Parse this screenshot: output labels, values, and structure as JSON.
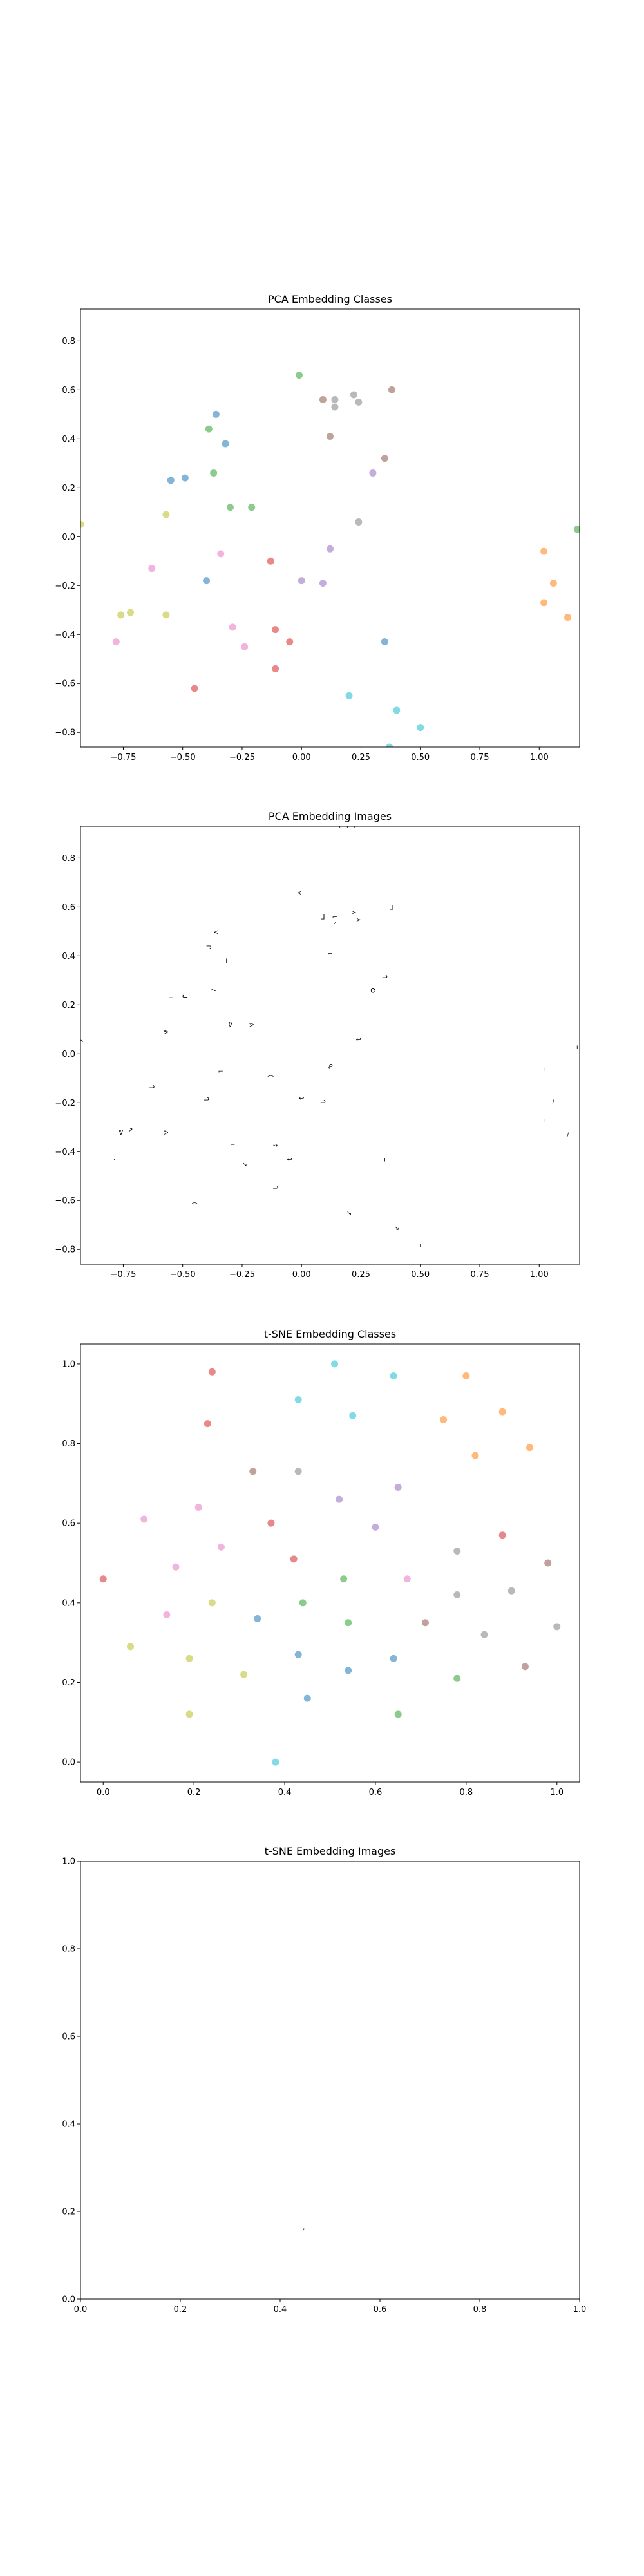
{
  "palette": [
    "#d62728",
    "#ff7f0e",
    "#2ca02c",
    "#1f77b4",
    "#9467bd",
    "#8c564b",
    "#e377c2",
    "#7f7f7f",
    "#bcbd22",
    "#17becf"
  ],
  "chart_data": [
    {
      "type": "scatter",
      "title": "PCA Embedding Classes",
      "marker": "dot",
      "xlim": [
        -0.93,
        1.17
      ],
      "ylim": [
        -0.86,
        0.93
      ],
      "xticks": [
        -0.75,
        -0.5,
        -0.25,
        0.0,
        0.25,
        0.5,
        0.75,
        1.0
      ],
      "xtick_labels": [
        "−0.75",
        "−0.50",
        "−0.25",
        "0.00",
        "0.25",
        "0.50",
        "0.75",
        "1.00"
      ],
      "yticks": [
        -0.8,
        -0.6,
        -0.4,
        -0.2,
        0.0,
        0.2,
        0.4,
        0.6,
        0.8
      ],
      "ytick_labels": [
        "−0.8",
        "−0.6",
        "−0.4",
        "−0.2",
        "0.0",
        "0.2",
        "0.4",
        "0.6",
        "0.8"
      ],
      "grid": false,
      "points": [
        {
          "x": -0.45,
          "y": -0.62,
          "class": 0
        },
        {
          "x": -0.13,
          "y": -0.1,
          "class": 0
        },
        {
          "x": -0.11,
          "y": -0.38,
          "class": 0
        },
        {
          "x": -0.05,
          "y": -0.43,
          "class": 0
        },
        {
          "x": -0.11,
          "y": -0.54,
          "class": 0
        },
        {
          "x": 1.02,
          "y": -0.06,
          "class": 1
        },
        {
          "x": 1.02,
          "y": -0.27,
          "class": 1
        },
        {
          "x": 1.06,
          "y": -0.19,
          "class": 1
        },
        {
          "x": 1.12,
          "y": -0.33,
          "class": 1
        },
        {
          "x": -0.01,
          "y": 0.66,
          "class": 2
        },
        {
          "x": -0.39,
          "y": 0.44,
          "class": 2
        },
        {
          "x": -0.37,
          "y": 0.26,
          "class": 2
        },
        {
          "x": -0.3,
          "y": 0.12,
          "class": 2
        },
        {
          "x": -0.21,
          "y": 0.12,
          "class": 2
        },
        {
          "x": 1.16,
          "y": 0.03,
          "class": 2
        },
        {
          "x": -0.36,
          "y": 0.5,
          "class": 3
        },
        {
          "x": -0.32,
          "y": 0.38,
          "class": 3
        },
        {
          "x": -0.55,
          "y": 0.23,
          "class": 3
        },
        {
          "x": -0.49,
          "y": 0.24,
          "class": 3
        },
        {
          "x": -0.4,
          "y": -0.18,
          "class": 3
        },
        {
          "x": 0.35,
          "y": -0.43,
          "class": 3
        },
        {
          "x": 0.0,
          "y": -0.18,
          "class": 4
        },
        {
          "x": 0.09,
          "y": -0.19,
          "class": 4
        },
        {
          "x": 0.3,
          "y": 0.26,
          "class": 4
        },
        {
          "x": 0.12,
          "y": -0.05,
          "class": 4
        },
        {
          "x": 0.09,
          "y": 0.56,
          "class": 5
        },
        {
          "x": 0.12,
          "y": 0.41,
          "class": 5
        },
        {
          "x": 0.35,
          "y": 0.32,
          "class": 5
        },
        {
          "x": 0.38,
          "y": 0.6,
          "class": 5
        },
        {
          "x": -0.63,
          "y": -0.13,
          "class": 6
        },
        {
          "x": -0.34,
          "y": -0.07,
          "class": 6
        },
        {
          "x": -0.29,
          "y": -0.37,
          "class": 6
        },
        {
          "x": -0.24,
          "y": -0.45,
          "class": 6
        },
        {
          "x": -0.78,
          "y": -0.43,
          "class": 6
        },
        {
          "x": 0.14,
          "y": 0.56,
          "class": 7
        },
        {
          "x": 0.14,
          "y": 0.53,
          "class": 7
        },
        {
          "x": 0.22,
          "y": 0.58,
          "class": 7
        },
        {
          "x": 0.24,
          "y": 0.55,
          "class": 7
        },
        {
          "x": 0.24,
          "y": 0.06,
          "class": 7
        },
        {
          "x": -0.57,
          "y": 0.09,
          "class": 8
        },
        {
          "x": -0.57,
          "y": -0.32,
          "class": 8
        },
        {
          "x": -0.72,
          "y": -0.31,
          "class": 8
        },
        {
          "x": -0.76,
          "y": -0.32,
          "class": 8
        },
        {
          "x": -0.93,
          "y": 0.05,
          "class": 8
        },
        {
          "x": 0.2,
          "y": -0.65,
          "class": 9
        },
        {
          "x": 0.4,
          "y": -0.71,
          "class": 9
        },
        {
          "x": 0.5,
          "y": -0.78,
          "class": 9
        },
        {
          "x": 0.37,
          "y": -0.86,
          "class": 9
        }
      ]
    },
    {
      "type": "scatter",
      "title": "PCA Embedding Images",
      "marker": "glyph",
      "xlim": [
        -0.93,
        1.17
      ],
      "ylim": [
        -0.86,
        0.93
      ],
      "xticks": [
        -0.75,
        -0.5,
        -0.25,
        0.0,
        0.25,
        0.5,
        0.75,
        1.0
      ],
      "xtick_labels": [
        "−0.75",
        "−0.50",
        "−0.25",
        "0.00",
        "0.25",
        "0.50",
        "0.75",
        "1.00"
      ],
      "yticks": [
        -0.8,
        -0.6,
        -0.4,
        -0.2,
        0.0,
        0.2,
        0.4,
        0.6,
        0.8
      ],
      "ytick_labels": [
        "−0.8",
        "−0.6",
        "−0.4",
        "−0.2",
        "0.0",
        "0.2",
        "0.4",
        "0.6",
        "0.8"
      ],
      "grid": false,
      "points": [
        {
          "x": -0.45,
          "y": -0.62,
          "glyph": "⌒"
        },
        {
          "x": -0.13,
          "y": -0.1,
          "glyph": "⌒"
        },
        {
          "x": -0.11,
          "y": -0.38,
          "glyph": "ᕯ"
        },
        {
          "x": -0.05,
          "y": -0.43,
          "glyph": "↩"
        },
        {
          "x": -0.11,
          "y": -0.54,
          "glyph": "ᓗ"
        },
        {
          "x": 1.02,
          "y": -0.06,
          "glyph": "ı"
        },
        {
          "x": 1.02,
          "y": -0.27,
          "glyph": "ı"
        },
        {
          "x": 1.06,
          "y": -0.19,
          "glyph": "/"
        },
        {
          "x": 1.12,
          "y": -0.33,
          "glyph": "/"
        },
        {
          "x": -0.01,
          "y": 0.66,
          "glyph": "≺"
        },
        {
          "x": -0.39,
          "y": 0.44,
          "glyph": "ᓓ"
        },
        {
          "x": -0.37,
          "y": 0.26,
          "glyph": "〜"
        },
        {
          "x": -0.3,
          "y": 0.12,
          "glyph": "ᕓ"
        },
        {
          "x": -0.21,
          "y": 0.12,
          "glyph": "ᕗ"
        },
        {
          "x": 1.16,
          "y": 0.03,
          "glyph": "ı"
        },
        {
          "x": -0.36,
          "y": 0.5,
          "glyph": "≺"
        },
        {
          "x": -0.32,
          "y": 0.38,
          "glyph": "ᒧ"
        },
        {
          "x": -0.55,
          "y": 0.23,
          "glyph": "⌐"
        },
        {
          "x": -0.49,
          "y": 0.24,
          "glyph": "ᓚ"
        },
        {
          "x": -0.4,
          "y": -0.18,
          "glyph": "ᓗ"
        },
        {
          "x": 0.35,
          "y": -0.43,
          "glyph": "ı"
        },
        {
          "x": 0.0,
          "y": -0.18,
          "glyph": "↩"
        },
        {
          "x": 0.09,
          "y": -0.19,
          "glyph": "ᓗ"
        },
        {
          "x": 0.3,
          "y": 0.26,
          "glyph": "Ꮳ"
        },
        {
          "x": 0.12,
          "y": -0.05,
          "glyph": "ᕵ"
        },
        {
          "x": 0.09,
          "y": 0.56,
          "glyph": "ᒧ"
        },
        {
          "x": 0.12,
          "y": 0.41,
          "glyph": "⌐"
        },
        {
          "x": 0.35,
          "y": 0.32,
          "glyph": "ᓗ"
        },
        {
          "x": 0.38,
          "y": 0.6,
          "glyph": "ᒧ"
        },
        {
          "x": -0.63,
          "y": -0.13,
          "glyph": "ᓗ"
        },
        {
          "x": -0.34,
          "y": -0.07,
          "glyph": "⌐"
        },
        {
          "x": -0.29,
          "y": -0.37,
          "glyph": "⌐"
        },
        {
          "x": -0.24,
          "y": -0.45,
          "glyph": "↘"
        },
        {
          "x": -0.78,
          "y": -0.43,
          "glyph": "⌐"
        },
        {
          "x": 0.14,
          "y": 0.56,
          "glyph": "⌐"
        },
        {
          "x": 0.14,
          "y": 0.53,
          "glyph": "ᐟ"
        },
        {
          "x": 0.22,
          "y": 0.58,
          "glyph": "≻"
        },
        {
          "x": 0.24,
          "y": 0.55,
          "glyph": "≻"
        },
        {
          "x": 0.24,
          "y": 0.06,
          "glyph": "↩"
        },
        {
          "x": -0.57,
          "y": 0.09,
          "glyph": "ᕗ"
        },
        {
          "x": -0.57,
          "y": -0.32,
          "glyph": "ᕗ"
        },
        {
          "x": -0.72,
          "y": -0.31,
          "glyph": "↗"
        },
        {
          "x": -0.76,
          "y": -0.32,
          "glyph": "ᕓ"
        },
        {
          "x": -0.93,
          "y": 0.05,
          "glyph": "↶"
        },
        {
          "x": 0.2,
          "y": -0.65,
          "glyph": "↘"
        },
        {
          "x": 0.4,
          "y": -0.71,
          "glyph": "↘"
        },
        {
          "x": 0.5,
          "y": -0.78,
          "glyph": "ı"
        },
        {
          "x": 0.37,
          "y": -0.86,
          "glyph": "⌐"
        },
        {
          "x": 0.2,
          "y": 0.93,
          "glyph": "⌐ ⌐ ⌐"
        }
      ]
    },
    {
      "type": "scatter",
      "title": "t-SNE Embedding Classes",
      "marker": "dot",
      "xlim": [
        -0.05,
        1.05
      ],
      "ylim": [
        -0.05,
        1.05
      ],
      "xticks": [
        0.0,
        0.2,
        0.4,
        0.6,
        0.8,
        1.0
      ],
      "xtick_labels": [
        "0.0",
        "0.2",
        "0.4",
        "0.6",
        "0.8",
        "1.0"
      ],
      "yticks": [
        0.0,
        0.2,
        0.4,
        0.6,
        0.8,
        1.0
      ],
      "ytick_labels": [
        "0.0",
        "0.2",
        "0.4",
        "0.6",
        "0.8",
        "1.0"
      ],
      "grid": false,
      "points": [
        {
          "x": 0.0,
          "y": 0.46,
          "class": 0
        },
        {
          "x": 0.24,
          "y": 0.98,
          "class": 0
        },
        {
          "x": 0.23,
          "y": 0.85,
          "class": 0
        },
        {
          "x": 0.37,
          "y": 0.6,
          "class": 0
        },
        {
          "x": 0.42,
          "y": 0.51,
          "class": 0
        },
        {
          "x": 0.88,
          "y": 0.57,
          "class": 0
        },
        {
          "x": 0.8,
          "y": 0.97,
          "class": 1
        },
        {
          "x": 0.75,
          "y": 0.86,
          "class": 1
        },
        {
          "x": 0.82,
          "y": 0.77,
          "class": 1
        },
        {
          "x": 0.88,
          "y": 0.88,
          "class": 1
        },
        {
          "x": 0.94,
          "y": 0.79,
          "class": 1
        },
        {
          "x": 0.44,
          "y": 0.4,
          "class": 2
        },
        {
          "x": 0.53,
          "y": 0.46,
          "class": 2
        },
        {
          "x": 0.54,
          "y": 0.35,
          "class": 2
        },
        {
          "x": 0.65,
          "y": 0.12,
          "class": 2
        },
        {
          "x": 0.78,
          "y": 0.21,
          "class": 2
        },
        {
          "x": 0.34,
          "y": 0.36,
          "class": 3
        },
        {
          "x": 0.43,
          "y": 0.27,
          "class": 3
        },
        {
          "x": 0.45,
          "y": 0.16,
          "class": 3
        },
        {
          "x": 0.54,
          "y": 0.23,
          "class": 3
        },
        {
          "x": 0.64,
          "y": 0.26,
          "class": 3
        },
        {
          "x": 0.52,
          "y": 0.66,
          "class": 4
        },
        {
          "x": 0.6,
          "y": 0.59,
          "class": 4
        },
        {
          "x": 0.65,
          "y": 0.69,
          "class": 4
        },
        {
          "x": 0.33,
          "y": 0.73,
          "class": 5
        },
        {
          "x": 0.71,
          "y": 0.35,
          "class": 5
        },
        {
          "x": 0.93,
          "y": 0.24,
          "class": 5
        },
        {
          "x": 0.98,
          "y": 0.5,
          "class": 5
        },
        {
          "x": 0.09,
          "y": 0.61,
          "class": 6
        },
        {
          "x": 0.16,
          "y": 0.49,
          "class": 6
        },
        {
          "x": 0.14,
          "y": 0.37,
          "class": 6
        },
        {
          "x": 0.21,
          "y": 0.64,
          "class": 6
        },
        {
          "x": 0.26,
          "y": 0.54,
          "class": 6
        },
        {
          "x": 0.67,
          "y": 0.46,
          "class": 6
        },
        {
          "x": 0.43,
          "y": 0.73,
          "class": 7
        },
        {
          "x": 0.78,
          "y": 0.42,
          "class": 7
        },
        {
          "x": 0.78,
          "y": 0.53,
          "class": 7
        },
        {
          "x": 0.84,
          "y": 0.32,
          "class": 7
        },
        {
          "x": 0.9,
          "y": 0.43,
          "class": 7
        },
        {
          "x": 1.0,
          "y": 0.34,
          "class": 7
        },
        {
          "x": 0.06,
          "y": 0.29,
          "class": 8
        },
        {
          "x": 0.19,
          "y": 0.26,
          "class": 8
        },
        {
          "x": 0.24,
          "y": 0.4,
          "class": 8
        },
        {
          "x": 0.31,
          "y": 0.22,
          "class": 8
        },
        {
          "x": 0.19,
          "y": 0.12,
          "class": 8
        },
        {
          "x": 0.51,
          "y": 1.0,
          "class": 9
        },
        {
          "x": 0.43,
          "y": 0.91,
          "class": 9
        },
        {
          "x": 0.55,
          "y": 0.87,
          "class": 9
        },
        {
          "x": 0.64,
          "y": 0.97,
          "class": 9
        },
        {
          "x": 0.38,
          "y": 0.0,
          "class": 9
        }
      ]
    },
    {
      "type": "scatter",
      "title": "t-SNE Embedding Images",
      "marker": "glyph",
      "xlim": [
        0.0,
        1.0
      ],
      "ylim": [
        0.0,
        1.0
      ],
      "xticks": [
        0.0,
        0.2,
        0.4,
        0.6,
        0.8,
        1.0
      ],
      "xtick_labels": [
        "0.0",
        "0.2",
        "0.4",
        "0.6",
        "0.8",
        "1.0"
      ],
      "yticks": [
        0.0,
        0.2,
        0.4,
        0.6,
        0.8,
        1.0
      ],
      "ytick_labels": [
        "0.0",
        "0.2",
        "0.4",
        "0.6",
        "0.8",
        "1.0"
      ],
      "grid": false,
      "points": [
        {
          "x": 0.45,
          "y": 0.16,
          "glyph": "ᓚ"
        }
      ]
    }
  ]
}
